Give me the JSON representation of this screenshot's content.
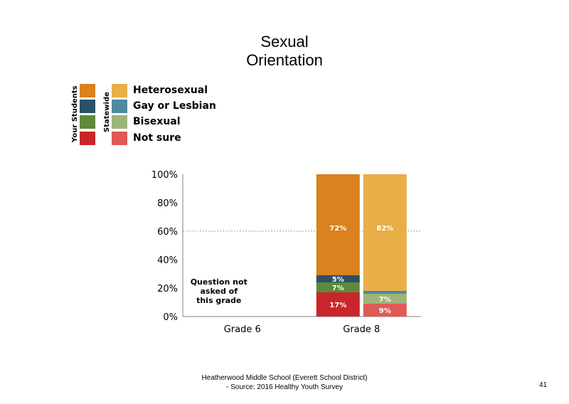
{
  "title_lines": [
    "Sexual",
    "Orientation"
  ],
  "legend": {
    "your_students_label": "Your Students",
    "statewide_label": "Statewide",
    "items": [
      {
        "label": "Heterosexual",
        "your_color": "#d9821e",
        "state_color": "#e8ae48"
      },
      {
        "label": "Gay or Lesbian",
        "your_color": "#2a5168",
        "state_color": "#4e8aa0"
      },
      {
        "label": "Bisexual",
        "your_color": "#5e8a3a",
        "state_color": "#9db57a"
      },
      {
        "label": "Not sure",
        "your_color": "#c8262a",
        "state_color": "#e05a57"
      }
    ]
  },
  "chart_data": {
    "type": "bar",
    "stacked": true,
    "categories": [
      "Grade 6",
      "Grade 8"
    ],
    "ylim": [
      0,
      100
    ],
    "yticks": [
      "0%",
      "20%",
      "40%",
      "60%",
      "80%",
      "100%"
    ],
    "reference_line": 60,
    "annotation": [
      "Question not",
      "asked of",
      "this grade"
    ],
    "bars": [
      {
        "category": "Grade 8",
        "group": "Your Students",
        "segments": [
          {
            "name": "Not sure",
            "value": 17,
            "label": "17%",
            "color": "#c8262a"
          },
          {
            "name": "Bisexual",
            "value": 7,
            "label": "7%",
            "color": "#5e8a3a"
          },
          {
            "name": "Gay or Lesbian",
            "value": 5,
            "label": "5%",
            "color": "#2a5168"
          },
          {
            "name": "Heterosexual",
            "value": 72,
            "label": "72%",
            "color": "#d9821e"
          }
        ]
      },
      {
        "category": "Grade 8",
        "group": "Statewide",
        "segments": [
          {
            "name": "Not sure",
            "value": 9,
            "label": "9%",
            "color": "#e05a57"
          },
          {
            "name": "Bisexual",
            "value": 7,
            "label": "7%",
            "color": "#9db57a"
          },
          {
            "name": "Gay or Lesbian",
            "value": 2,
            "label": "",
            "color": "#4e8aa0"
          },
          {
            "name": "Heterosexual",
            "value": 82,
            "label": "82%",
            "color": "#e8ae48"
          }
        ]
      }
    ]
  },
  "footer_lines": [
    "Heatherwood Middle School (Everett School District)",
    "- Source: 2016 Healthy  Youth Survey"
  ],
  "page_number": "41"
}
